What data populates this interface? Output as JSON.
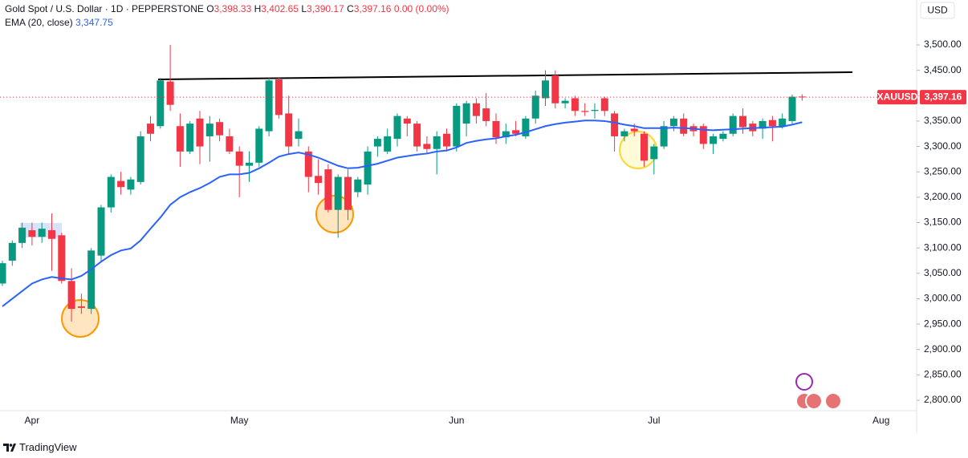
{
  "chart_data": {
    "type": "candlestick",
    "title": "Gold Spot / U.S. Dollar · 1D · PEPPERSTONE",
    "ohlc_legend": [
      {
        "key": "O",
        "value": "3,398.33"
      },
      {
        "key": "H",
        "value": "3,402.65"
      },
      {
        "key": "L",
        "value": "3,390.17"
      },
      {
        "key": "C",
        "value": "3,397.16"
      }
    ],
    "change": "0.00 (0.00%)",
    "currency": "USD",
    "last_price": {
      "symbol": "XAUUSD",
      "label": "3,397.16"
    },
    "up_color": "#089981",
    "down_color": "#f23645",
    "categories": [
      null,
      null,
      null,
      "Apr",
      null,
      null,
      null,
      null,
      null,
      null,
      null,
      null,
      null,
      null,
      null,
      null,
      null,
      null,
      null,
      null,
      null,
      null,
      null,
      null,
      "May",
      null,
      null,
      null,
      null,
      null,
      null,
      null,
      null,
      null,
      null,
      null,
      null,
      null,
      null,
      null,
      null,
      null,
      null,
      null,
      null,
      null,
      "Jun",
      null,
      null,
      null,
      null,
      null,
      null,
      null,
      null,
      null,
      null,
      null,
      null,
      null,
      null,
      null,
      null,
      null,
      null,
      null,
      "Jul",
      null,
      null,
      null,
      null,
      null,
      null,
      null,
      null,
      null,
      null,
      null,
      null,
      null,
      null,
      null,
      null,
      null,
      null,
      null,
      null,
      null,
      null,
      "Aug"
    ],
    "open": [
      3030,
      3075,
      3110,
      3135,
      3122,
      3135,
      3125,
      3035,
      2985,
      2980,
      3085,
      3180,
      3232,
      3215,
      3230,
      3345,
      3340,
      3428,
      3340,
      3290,
      3355,
      3320,
      3348,
      3320,
      3290,
      3262,
      3268,
      3330,
      3432,
      3365,
      3315,
      3290,
      3242,
      3255,
      3175,
      3240,
      3210,
      3225,
      3300,
      3290,
      3315,
      3355,
      3345,
      3305,
      3295,
      3325,
      3300,
      3345,
      3385,
      3375,
      3350,
      3318,
      3332,
      3320,
      3355,
      3395,
      3440,
      3385,
      3395,
      3370,
      3370,
      3395,
      3365,
      3320,
      3335,
      3325,
      3275,
      3300,
      3340,
      3355,
      3340,
      3340,
      3305,
      3315,
      3325,
      3360,
      3345,
      3335,
      3352,
      3340,
      3350,
      3398.33,
      null,
      null,
      null,
      null,
      null,
      null,
      null,
      null
    ],
    "high": [
      3075,
      3115,
      3150,
      3150,
      3150,
      3168,
      3130,
      3060,
      3010,
      3100,
      3185,
      3245,
      3250,
      3240,
      3330,
      3360,
      3435,
      3500,
      3365,
      3350,
      3370,
      3360,
      3355,
      3335,
      3300,
      3290,
      3340,
      3435,
      3435,
      3400,
      3355,
      3300,
      3275,
      3265,
      3245,
      3255,
      3240,
      3300,
      3320,
      3335,
      3365,
      3360,
      3350,
      3320,
      3330,
      3335,
      3385,
      3390,
      3395,
      3405,
      3365,
      3345,
      3350,
      3360,
      3410,
      3450,
      3450,
      3395,
      3400,
      3385,
      3385,
      3398,
      3370,
      3335,
      3345,
      3330,
      3305,
      3350,
      3360,
      3365,
      3345,
      3345,
      3325,
      3330,
      3365,
      3375,
      3350,
      3355,
      3360,
      3365,
      3402,
      3402.65,
      null,
      null,
      null,
      null,
      null,
      null,
      null,
      null
    ],
    "low": [
      3025,
      3065,
      3100,
      3105,
      3110,
      3055,
      3030,
      2955,
      2970,
      2970,
      3075,
      3170,
      3205,
      3205,
      3225,
      3310,
      3335,
      3370,
      3260,
      3285,
      3265,
      3270,
      3310,
      3285,
      3200,
      3230,
      3260,
      3320,
      3355,
      3285,
      3300,
      3210,
      3205,
      3170,
      3120,
      3155,
      3200,
      3205,
      3280,
      3285,
      3300,
      3320,
      3290,
      3285,
      3245,
      3290,
      3290,
      3320,
      3345,
      3340,
      3305,
      3305,
      3320,
      3315,
      3345,
      3380,
      3375,
      3375,
      3360,
      3360,
      3355,
      3360,
      3290,
      3310,
      3320,
      3260,
      3245,
      3295,
      3330,
      3320,
      3320,
      3295,
      3285,
      3310,
      3320,
      3325,
      3320,
      3315,
      3310,
      3335,
      3345,
      3390.17,
      null,
      null,
      null,
      null,
      null,
      null,
      null,
      null
    ],
    "close": [
      3070,
      3110,
      3140,
      3122,
      3138,
      3118,
      3035,
      2980,
      2982,
      3095,
      3180,
      3240,
      3220,
      3235,
      3320,
      3325,
      3430,
      3382,
      3290,
      3345,
      3300,
      3345,
      3322,
      3290,
      3262,
      3268,
      3335,
      3430,
      3362,
      3300,
      3330,
      3240,
      3228,
      3175,
      3240,
      3175,
      3235,
      3290,
      3315,
      3320,
      3360,
      3345,
      3300,
      3295,
      3320,
      3300,
      3380,
      3385,
      3360,
      3350,
      3318,
      3330,
      3325,
      3355,
      3400,
      3430,
      3385,
      3390,
      3370,
      3368,
      3372,
      3370,
      3320,
      3330,
      3330,
      3272,
      3300,
      3340,
      3355,
      3325,
      3330,
      3305,
      3320,
      3325,
      3360,
      3338,
      3330,
      3350,
      3340,
      3355,
      3398,
      3397.16,
      null,
      null,
      null,
      null,
      null,
      null,
      null,
      null
    ],
    "series": [
      {
        "name": "EMA (20, close)",
        "color": "#2962ff",
        "value_label": "3,347.75",
        "values": [
          2985,
          3000,
          3015,
          3030,
          3038,
          3043,
          3040,
          3038,
          3045,
          3058,
          3073,
          3086,
          3095,
          3099,
          3115,
          3138,
          3160,
          3185,
          3200,
          3210,
          3218,
          3228,
          3240,
          3245,
          3245,
          3248,
          3257,
          3268,
          3280,
          3285,
          3288,
          3284,
          3278,
          3270,
          3262,
          3257,
          3258,
          3262,
          3266,
          3272,
          3278,
          3281,
          3284,
          3286,
          3290,
          3292,
          3298,
          3307,
          3311,
          3314,
          3316,
          3320,
          3323,
          3328,
          3334,
          3340,
          3344,
          3347,
          3349,
          3351,
          3351,
          3350,
          3347,
          3343,
          3340,
          3336,
          3336,
          3336,
          3337,
          3336,
          3335,
          3333,
          3332,
          3333,
          3334,
          3335,
          3336,
          3337,
          3338,
          3339,
          3343,
          3347.75,
          null,
          null,
          null,
          null,
          null,
          null,
          null,
          null
        ]
      }
    ],
    "ylim": [
      2779.5,
      3588.5
    ],
    "yticks": [
      {
        "value": 2800,
        "label": "2,800.00"
      },
      {
        "value": 2850,
        "label": "2,850.00"
      },
      {
        "value": 2900,
        "label": "2,900.00"
      },
      {
        "value": 2950,
        "label": "2,950.00"
      },
      {
        "value": 3000,
        "label": "3,000.00"
      },
      {
        "value": 3050,
        "label": "3,050.00"
      },
      {
        "value": 3100,
        "label": "3,100.00"
      },
      {
        "value": 3150,
        "label": "3,150.00"
      },
      {
        "value": 3200,
        "label": "3,200.00"
      },
      {
        "value": 3250,
        "label": "3,250.00"
      },
      {
        "value": 3300,
        "label": "3,300.00"
      },
      {
        "value": 3350,
        "label": "3,350.00"
      },
      {
        "value": 3400,
        "label": "3,400.00"
      },
      {
        "value": 3450,
        "label": "3,450.00"
      },
      {
        "value": 3500,
        "label": "3,500.00"
      }
    ]
  },
  "footer": {
    "brand": "TradingView"
  }
}
